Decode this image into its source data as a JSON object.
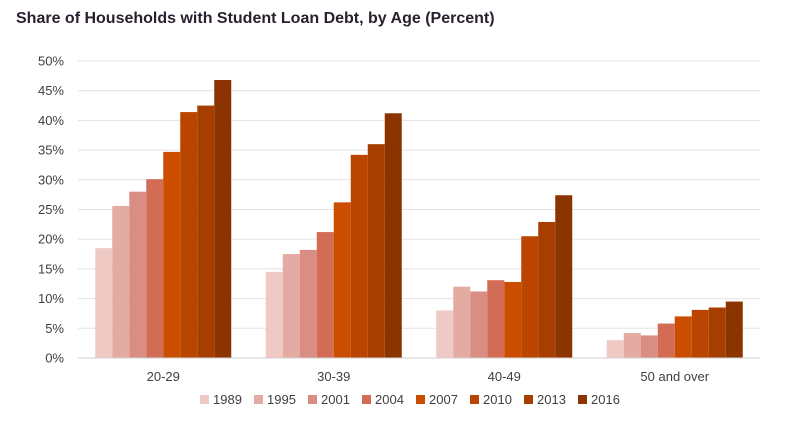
{
  "chart_data": {
    "type": "bar",
    "title": "Share of Households with Student Loan Debt, by Age (Percent)",
    "categories": [
      "20-29",
      "30-39",
      "40-49",
      "50 and over"
    ],
    "ylim": [
      0,
      50
    ],
    "yticks": [
      "0%",
      "5%",
      "10%",
      "15%",
      "20%",
      "25%",
      "30%",
      "35%",
      "40%",
      "45%",
      "50%"
    ],
    "grid": true,
    "legend_position": "bottom",
    "series": [
      {
        "name": "1989",
        "color": "#efcac4",
        "values": [
          18.5,
          14.5,
          8.0,
          3.0
        ]
      },
      {
        "name": "1995",
        "color": "#e4aba3",
        "values": [
          25.6,
          17.5,
          12.0,
          4.2
        ]
      },
      {
        "name": "2001",
        "color": "#da8d82",
        "values": [
          28.0,
          18.2,
          11.2,
          3.8
        ]
      },
      {
        "name": "2004",
        "color": "#d26c54",
        "values": [
          30.1,
          21.2,
          13.1,
          5.8
        ]
      },
      {
        "name": "2007",
        "color": "#ca4d00",
        "values": [
          34.7,
          26.2,
          12.8,
          7.0
        ]
      },
      {
        "name": "2010",
        "color": "#b94500",
        "values": [
          41.4,
          34.2,
          20.5,
          8.1
        ]
      },
      {
        "name": "2013",
        "color": "#a63e00",
        "values": [
          42.5,
          36.0,
          22.9,
          8.5
        ]
      },
      {
        "name": "2016",
        "color": "#8c3400",
        "values": [
          46.8,
          41.2,
          27.4,
          9.5
        ]
      }
    ]
  }
}
